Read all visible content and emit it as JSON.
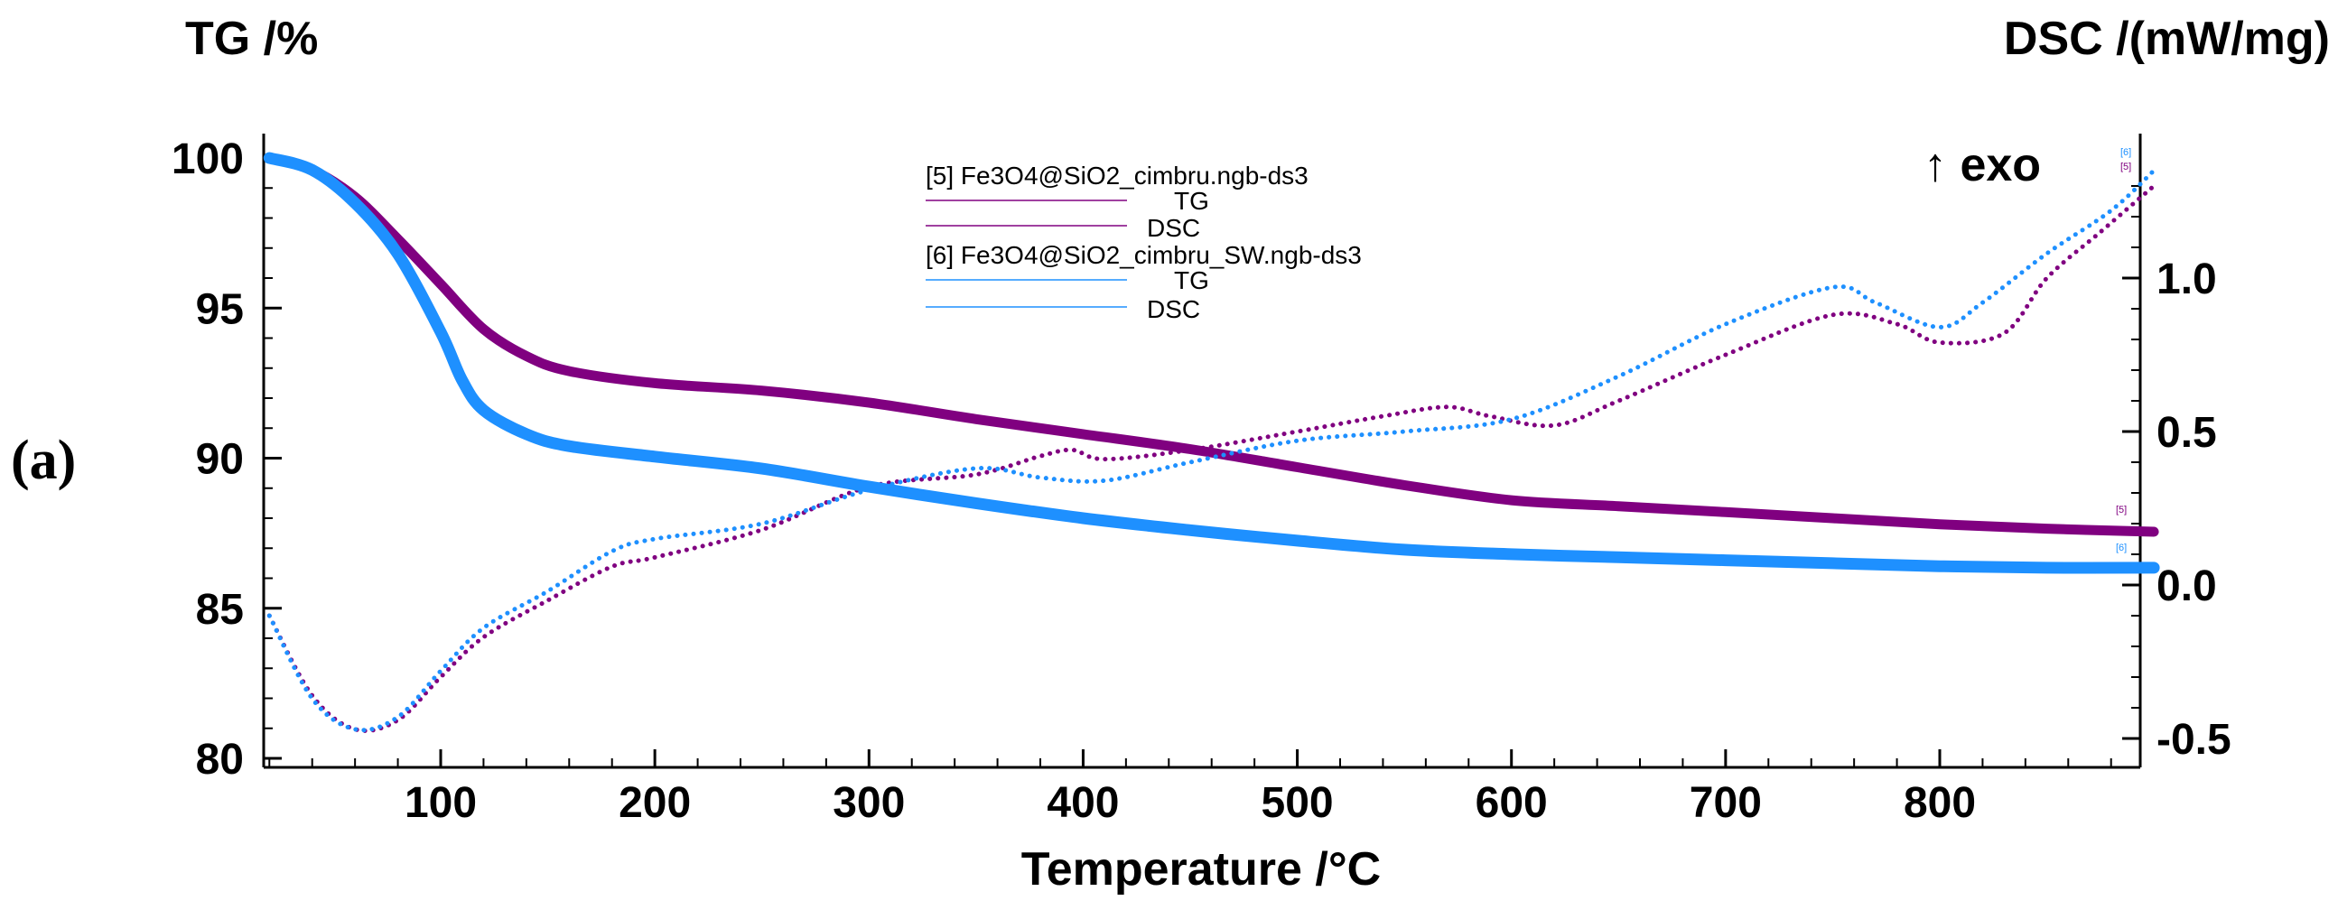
{
  "chart_data": {
    "type": "line",
    "panel_label": "(a)",
    "xlabel": "Temperature /°C",
    "ylabel_left": "TG /%",
    "ylabel_right": "DSC /(mW/mg)",
    "exo_label": "↑ exo",
    "xlim": [
      18,
      900
    ],
    "ylim_left": [
      80,
      101
    ],
    "ylim_right": [
      -0.6,
      1.45
    ],
    "x_ticks": [
      100,
      200,
      300,
      400,
      500,
      600,
      700,
      800
    ],
    "x_tick_labels": [
      "100",
      "200",
      "300",
      "400",
      "500",
      "600",
      "700",
      "800"
    ],
    "y_left_ticks": [
      100,
      95,
      90,
      85,
      80
    ],
    "y_left_tick_labels": [
      "100",
      "95",
      "90",
      "85",
      "80"
    ],
    "y_right_ticks": [
      1.0,
      0.5,
      0.0,
      -0.5
    ],
    "y_right_tick_labels": [
      "1.0",
      "0.5",
      "0.0",
      "-0.5"
    ],
    "legend": {
      "groups": [
        {
          "title": "[5] Fe3O4@SiO2_cimbru.ngb-ds3",
          "entries": [
            "TG",
            "DSC"
          ],
          "color": "#800080"
        },
        {
          "title": "[6] Fe3O4@SiO2_cimbru_SW.ngb-ds3",
          "entries": [
            "TG",
            "DSC"
          ],
          "color": "#1e90ff"
        }
      ]
    },
    "end_tags": [
      "[5]",
      "[6]"
    ],
    "series": [
      {
        "name": "[5] TG",
        "axis": "left",
        "style": "solid",
        "color": "#800080",
        "x": [
          20,
          40,
          60,
          80,
          100,
          120,
          140,
          160,
          200,
          250,
          300,
          350,
          400,
          450,
          500,
          550,
          600,
          650,
          700,
          750,
          800,
          850,
          900
        ],
        "y": [
          100,
          99.6,
          98.7,
          97.3,
          95.8,
          94.3,
          93.4,
          92.9,
          92.5,
          92.25,
          91.85,
          91.3,
          90.8,
          90.3,
          89.7,
          89.1,
          88.6,
          88.4,
          88.2,
          88.0,
          87.8,
          87.65,
          87.55
        ]
      },
      {
        "name": "[5] DSC",
        "axis": "right",
        "style": "dotted",
        "color": "#800080",
        "x": [
          20,
          40,
          60,
          80,
          100,
          120,
          150,
          180,
          200,
          250,
          300,
          350,
          380,
          395,
          410,
          450,
          500,
          540,
          570,
          590,
          620,
          650,
          700,
          750,
          780,
          800,
          830,
          850,
          875,
          900
        ],
        "y": [
          -0.1,
          -0.36,
          -0.47,
          -0.44,
          -0.3,
          -0.17,
          -0.05,
          0.06,
          0.09,
          0.18,
          0.32,
          0.36,
          0.42,
          0.44,
          0.41,
          0.44,
          0.5,
          0.55,
          0.58,
          0.55,
          0.52,
          0.6,
          0.75,
          0.88,
          0.85,
          0.79,
          0.82,
          1.0,
          1.15,
          1.3
        ]
      },
      {
        "name": "[6] TG",
        "axis": "left",
        "style": "solid",
        "color": "#1e90ff",
        "x": [
          20,
          40,
          60,
          80,
          100,
          110,
          120,
          140,
          160,
          200,
          250,
          300,
          350,
          400,
          450,
          500,
          550,
          600,
          650,
          700,
          750,
          800,
          850,
          900
        ],
        "y": [
          100,
          99.6,
          98.5,
          96.8,
          94.2,
          92.6,
          91.6,
          90.8,
          90.4,
          90.05,
          89.65,
          89.05,
          88.5,
          88.0,
          87.6,
          87.25,
          86.95,
          86.8,
          86.7,
          86.6,
          86.5,
          86.4,
          86.35,
          86.35
        ]
      },
      {
        "name": "[6] DSC",
        "axis": "right",
        "style": "dotted",
        "color": "#1e90ff",
        "x": [
          20,
          40,
          60,
          80,
          100,
          120,
          150,
          180,
          200,
          250,
          300,
          350,
          380,
          410,
          450,
          500,
          550,
          600,
          650,
          700,
          750,
          770,
          800,
          820,
          850,
          880,
          900
        ],
        "y": [
          -0.1,
          -0.37,
          -0.47,
          -0.43,
          -0.28,
          -0.14,
          -0.02,
          0.11,
          0.15,
          0.2,
          0.31,
          0.38,
          0.35,
          0.34,
          0.4,
          0.47,
          0.5,
          0.54,
          0.68,
          0.85,
          0.97,
          0.92,
          0.84,
          0.92,
          1.08,
          1.22,
          1.35
        ]
      }
    ]
  }
}
